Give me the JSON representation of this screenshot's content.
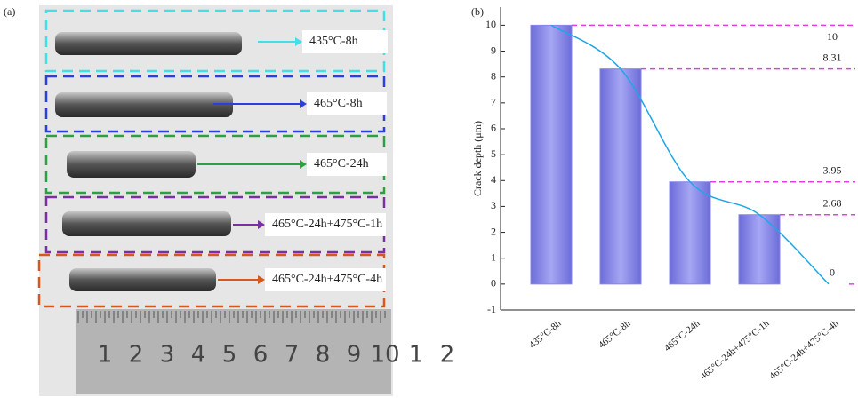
{
  "panels": [
    "(a)",
    "(b)"
  ],
  "photo": {
    "labels": [
      "435°C-8h",
      "465°C-8h",
      "465°C-24h",
      "465°C-24h+475°C-1h",
      "465°C-24h+475°C-4h"
    ],
    "ruler": [
      "1",
      "2",
      "3",
      "4",
      "5",
      "6",
      "7",
      "8",
      "9",
      "10",
      "1",
      "2"
    ]
  },
  "chart_data": {
    "type": "bar",
    "y_label": "Crack depth (μm)",
    "categories": [
      "435°C-8h",
      "465°C-8h",
      "465°C-24h",
      "465°C-24h+475°C-1h",
      "465°C-24h+475°C-4h"
    ],
    "values": [
      10,
      8.31,
      3.95,
      2.68,
      0
    ],
    "color": "#8585ea",
    "line_color": "#1ea6e6",
    "ref_line_color": "#e040e0",
    "ylim": [
      -1,
      10.7
    ],
    "yticks": [
      -1,
      0,
      1,
      2,
      3,
      4,
      5,
      6,
      7,
      8,
      9,
      10
    ]
  }
}
